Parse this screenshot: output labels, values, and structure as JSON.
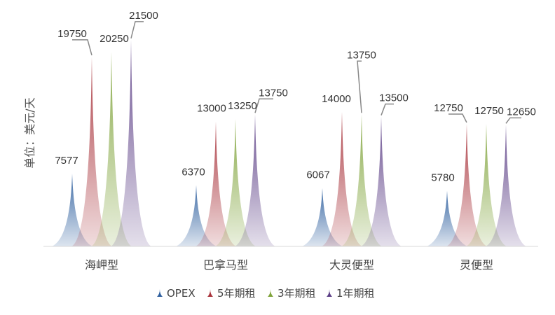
{
  "chart_data": {
    "type": "bar",
    "shape": "spike",
    "title": "",
    "xlabel": "",
    "ylabel": "单位：美元/天",
    "categories": [
      "海岬型",
      "巴拿马型",
      "大灵便型",
      "灵便型"
    ],
    "series": [
      {
        "name": "OPEX",
        "values": [
          7577,
          6370,
          6067,
          5780
        ],
        "color": "#2e5f9e"
      },
      {
        "name": "5年期租",
        "values": [
          19750,
          13000,
          14000,
          12750
        ],
        "color": "#a8323a"
      },
      {
        "name": "3年期租",
        "values": [
          20250,
          13250,
          13750,
          12750
        ],
        "color": "#7fa33a"
      },
      {
        "name": "1年期租",
        "values": [
          21500,
          13750,
          13500,
          12650
        ],
        "color": "#5c3f86"
      }
    ],
    "ylim": [
      0,
      22000
    ],
    "grid": false,
    "legend": "bottom"
  }
}
